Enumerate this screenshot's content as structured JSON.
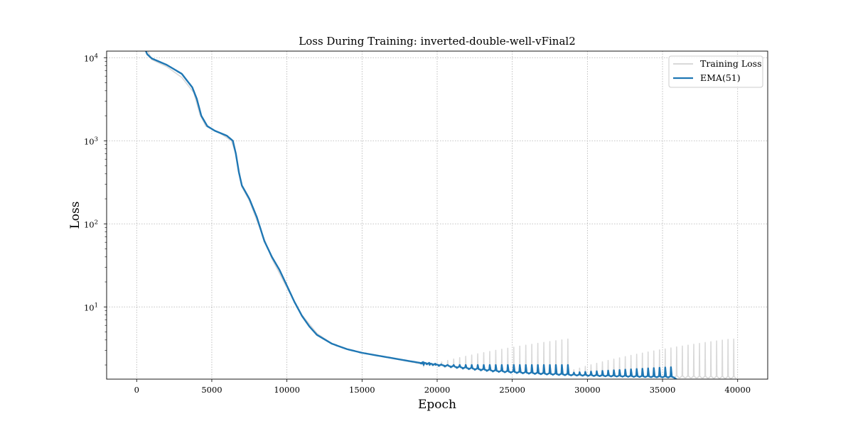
{
  "chart_data": {
    "type": "line",
    "title": "Loss During Training: inverted-double-well-vFinal2",
    "xlabel": "Epoch",
    "ylabel": "Loss",
    "xlim": [
      -2000,
      42000
    ],
    "ylim": [
      1.35,
      12000
    ],
    "yscale": "log",
    "x_ticks": [
      0,
      5000,
      10000,
      15000,
      20000,
      25000,
      30000,
      35000,
      40000
    ],
    "x_tick_labels": [
      "0",
      "5000",
      "10000",
      "15000",
      "20000",
      "25000",
      "30000",
      "35000",
      "40000"
    ],
    "y_ticks": [
      10,
      100,
      1000,
      10000
    ],
    "y_tick_labels": [
      {
        "base": "10",
        "exp": "1"
      },
      {
        "base": "10",
        "exp": "2"
      },
      {
        "base": "10",
        "exp": "3"
      },
      {
        "base": "10",
        "exp": "4"
      }
    ],
    "grid": true,
    "legend_position": "top-right",
    "colors": {
      "training_loss": "#d9d9d9",
      "ema": "#1f77b4"
    },
    "series": [
      {
        "name": "Training Loss",
        "color": "#d9d9d9",
        "base_points": [
          [
            500,
            15000
          ],
          [
            1000,
            9500
          ],
          [
            2000,
            7800
          ],
          [
            3000,
            5800
          ],
          [
            3800,
            3800
          ],
          [
            4200,
            2100
          ],
          [
            4600,
            1500
          ],
          [
            5500,
            1250
          ],
          [
            6300,
            1000
          ],
          [
            6600,
            700
          ],
          [
            7000,
            280
          ],
          [
            7500,
            190
          ],
          [
            8000,
            110
          ],
          [
            9000,
            38
          ],
          [
            10000,
            17
          ],
          [
            11000,
            8
          ],
          [
            12000,
            4.8
          ],
          [
            13000,
            3.6
          ],
          [
            14000,
            3.1
          ],
          [
            15000,
            2.8
          ],
          [
            17000,
            2.4
          ],
          [
            19000,
            2.05
          ],
          [
            21000,
            1.85
          ],
          [
            23000,
            1.72
          ],
          [
            25000,
            1.62
          ],
          [
            27000,
            1.55
          ],
          [
            29000,
            1.5
          ],
          [
            31000,
            1.47
          ],
          [
            33000,
            1.44
          ],
          [
            35000,
            1.42
          ],
          [
            37000,
            1.4
          ],
          [
            40000,
            1.38
          ]
        ],
        "spikes_phase1": {
          "start": 19100,
          "end": 29000,
          "step": 400,
          "peak_start": 1.9,
          "peak_rise": 2.2,
          "peak_max": 4.3
        },
        "spikes_phase2": {
          "start": 29100,
          "end": 40000,
          "step": 380,
          "peak_start": 1.75,
          "peak_rise": 2.4,
          "peak_max": 4.1
        }
      },
      {
        "name": "EMA(51)",
        "color": "#1f77b4",
        "base_points": [
          [
            500,
            13500
          ],
          [
            700,
            11000
          ],
          [
            1000,
            9800
          ],
          [
            2000,
            8200
          ],
          [
            3000,
            6400
          ],
          [
            3700,
            4400
          ],
          [
            4000,
            3200
          ],
          [
            4300,
            2000
          ],
          [
            4700,
            1500
          ],
          [
            5200,
            1320
          ],
          [
            6000,
            1150
          ],
          [
            6400,
            1000
          ],
          [
            6600,
            700
          ],
          [
            6800,
            420
          ],
          [
            7000,
            290
          ],
          [
            7500,
            200
          ],
          [
            8000,
            120
          ],
          [
            8500,
            62
          ],
          [
            9000,
            40
          ],
          [
            9500,
            28
          ],
          [
            10000,
            18
          ],
          [
            10500,
            11.5
          ],
          [
            11000,
            7.8
          ],
          [
            11500,
            5.8
          ],
          [
            12000,
            4.6
          ],
          [
            13000,
            3.6
          ],
          [
            14000,
            3.1
          ],
          [
            15000,
            2.8
          ],
          [
            16000,
            2.6
          ],
          [
            17000,
            2.42
          ],
          [
            18000,
            2.25
          ],
          [
            19000,
            2.1
          ],
          [
            20000,
            1.98
          ],
          [
            22000,
            1.8
          ],
          [
            24000,
            1.66
          ],
          [
            26000,
            1.58
          ],
          [
            28000,
            1.52
          ],
          [
            30000,
            1.48
          ],
          [
            32000,
            1.45
          ],
          [
            34000,
            1.43
          ],
          [
            36000,
            1.41
          ],
          [
            36050,
            1.3
          ]
        ],
        "spikes_phase1": {
          "start": 19100,
          "end": 28900,
          "step": 400,
          "peak": 2.0
        },
        "spikes_phase2": {
          "start": 29100,
          "end": 35900,
          "step": 380,
          "peak_start": 1.62,
          "peak_end": 1.88
        }
      }
    ]
  }
}
